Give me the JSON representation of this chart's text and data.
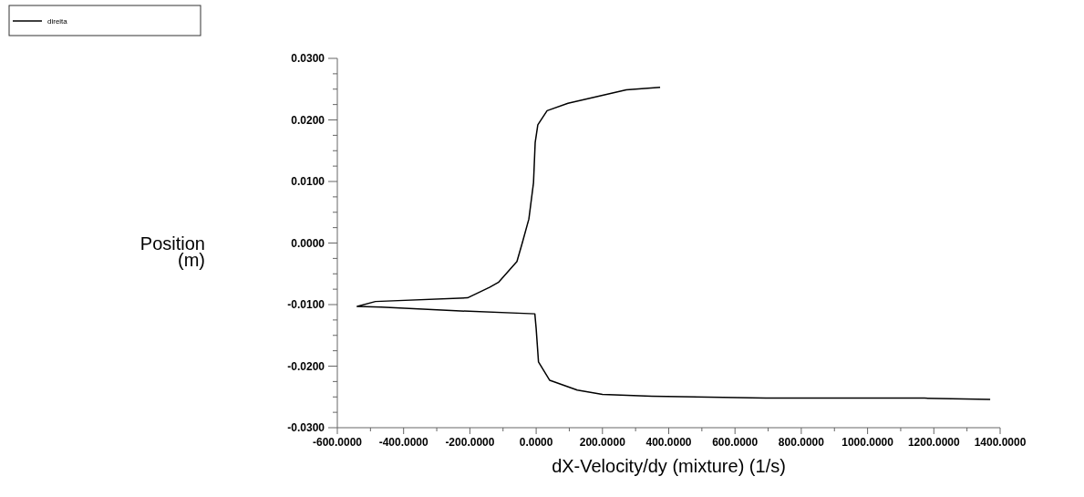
{
  "chart_data": {
    "type": "line",
    "xlabel": "dX-Velocity/dy (mixture)  (1/s)",
    "ylabel": "Position (m)",
    "legend": "top left",
    "grid": false,
    "marker": "none",
    "line_style": "solid",
    "xlim": [
      -600,
      1400
    ],
    "ylim": [
      -0.03,
      0.03
    ],
    "xticks": [
      {
        "value": -600,
        "label": "-600.0000"
      },
      {
        "value": -500,
        "label": null
      },
      {
        "value": -400,
        "label": "-400.0000"
      },
      {
        "value": -300,
        "label": null
      },
      {
        "value": -200,
        "label": "-200.0000"
      },
      {
        "value": -100,
        "label": null
      },
      {
        "value": 0,
        "label": "0.0000"
      },
      {
        "value": 100,
        "label": null
      },
      {
        "value": 200,
        "label": "200.0000"
      },
      {
        "value": 300,
        "label": null
      },
      {
        "value": 400,
        "label": "400.0000"
      },
      {
        "value": 500,
        "label": null
      },
      {
        "value": 600,
        "label": "600.0000"
      },
      {
        "value": 700,
        "label": null
      },
      {
        "value": 800,
        "label": "800.0000"
      },
      {
        "value": 900,
        "label": null
      },
      {
        "value": 1000,
        "label": "1000.0000"
      },
      {
        "value": 1100,
        "label": null
      },
      {
        "value": 1200,
        "label": "1200.0000"
      },
      {
        "value": 1300,
        "label": null
      },
      {
        "value": 1400,
        "label": "1400.0000"
      }
    ],
    "yticks": [
      {
        "value": -0.03,
        "label": "-0.0300"
      },
      {
        "value": -0.0275,
        "label": null
      },
      {
        "value": -0.025,
        "label": null
      },
      {
        "value": -0.0225,
        "label": null
      },
      {
        "value": -0.02,
        "label": "-0.0200"
      },
      {
        "value": -0.0175,
        "label": null
      },
      {
        "value": -0.015,
        "label": null
      },
      {
        "value": -0.0125,
        "label": null
      },
      {
        "value": -0.01,
        "label": "-0.0100"
      },
      {
        "value": -0.0075,
        "label": null
      },
      {
        "value": -0.005,
        "label": null
      },
      {
        "value": -0.0025,
        "label": null
      },
      {
        "value": 0,
        "label": "0.0000"
      },
      {
        "value": 0.0025,
        "label": null
      },
      {
        "value": 0.005,
        "label": null
      },
      {
        "value": 0.0075,
        "label": null
      },
      {
        "value": 0.01,
        "label": "0.0100"
      },
      {
        "value": 0.0125,
        "label": null
      },
      {
        "value": 0.015,
        "label": null
      },
      {
        "value": 0.0175,
        "label": null
      },
      {
        "value": 0.02,
        "label": "0.0200"
      },
      {
        "value": 0.0225,
        "label": null
      },
      {
        "value": 0.025,
        "label": null
      },
      {
        "value": 0.0275,
        "label": null
      },
      {
        "value": 0.03,
        "label": "0.0300"
      }
    ],
    "series": [
      {
        "name": "direita",
        "color": "#000000",
        "x": [
          374,
          272,
          96,
          33,
          5,
          -3,
          -8,
          -22,
          -42,
          -58,
          -114,
          -141,
          -207,
          -485,
          -540,
          -468,
          -242,
          -4,
          0,
          7,
          41,
          124,
          200,
          349,
          693,
          1172,
          1370
        ],
        "values": [
          0.0253,
          0.0249,
          0.0227,
          0.0215,
          0.0192,
          0.0163,
          0.0098,
          0.0039,
          0.0,
          -0.003,
          -0.0064,
          -0.0072,
          -0.0089,
          -0.0095,
          -0.0103,
          -0.0104,
          -0.011,
          -0.0115,
          -0.0139,
          -0.0193,
          -0.0223,
          -0.0239,
          -0.0246,
          -0.0249,
          -0.0252,
          -0.0252,
          -0.0254
        ]
      }
    ]
  }
}
